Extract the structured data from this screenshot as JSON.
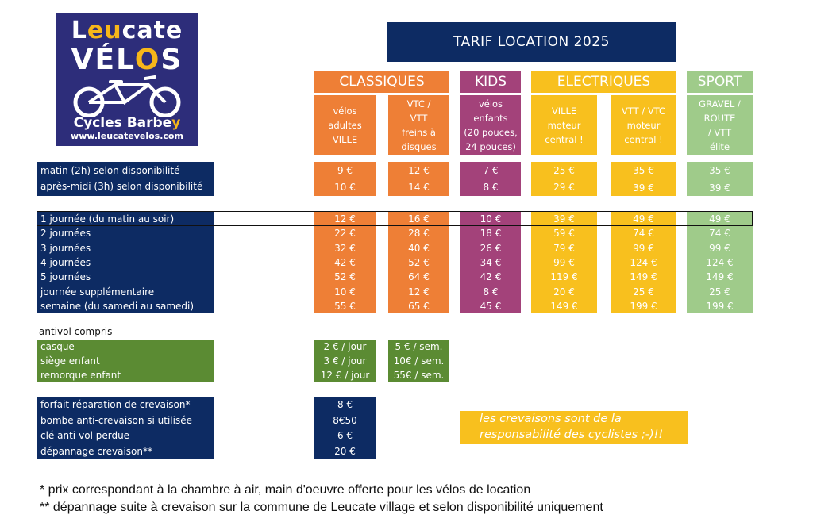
{
  "logo": {
    "line1_a": "L",
    "line1_b": "eu",
    "line1_c": "cate",
    "line2_a": "VÉL",
    "line2_b": "O",
    "line2_c": "S",
    "line3_a": "Cycles Barbe",
    "line3_b": "y",
    "url": "www.leucatevelos.com"
  },
  "title": "TARIF LOCATION 2025",
  "categories": {
    "classiques": "CLASSIQUES",
    "kids": "KIDS",
    "electriques": "ELECTRIQUES",
    "sport": "SPORT"
  },
  "columns": [
    {
      "lines": [
        "vélos",
        "adultes",
        "",
        "VILLE"
      ]
    },
    {
      "lines": [
        "VTC  /",
        "VTT",
        "freins à",
        "disques"
      ]
    },
    {
      "lines": [
        "vélos",
        "enfants",
        "(20 pouces,",
        "24 pouces)"
      ]
    },
    {
      "lines": [
        "VILLE",
        "",
        "moteur",
        "central !"
      ]
    },
    {
      "lines": [
        "VTT / VTC",
        "",
        "moteur",
        "central !"
      ]
    },
    {
      "lines": [
        "GRAVEL /",
        "ROUTE",
        "/ VTT",
        "élite"
      ]
    }
  ],
  "half_day": {
    "labels": [
      "matin (2h) selon disponibilité",
      "après-midi (3h) selon disponibilité"
    ],
    "prices": [
      [
        "9 €",
        "10 €"
      ],
      [
        "12 €",
        "14 €"
      ],
      [
        "7 €",
        "8 €"
      ],
      [
        "25 €",
        "29 €"
      ],
      [
        "35 €",
        "39 €"
      ],
      [
        "35 €",
        "39 €"
      ]
    ]
  },
  "days": {
    "labels": [
      "1 journée (du matin au soir)",
      "2 journées",
      "3 journées",
      "4 journées",
      "5 journées",
      "journée supplémentaire",
      "semaine (du samedi au samedi)"
    ],
    "prices": [
      [
        "12 €",
        "22 €",
        "32 €",
        "42 €",
        "52 €",
        "10 €",
        "55 €"
      ],
      [
        "16 €",
        "28 €",
        "40 €",
        "52 €",
        "64 €",
        "12 €",
        "65 €"
      ],
      [
        "10 €",
        "18 €",
        "26 €",
        "34 €",
        "42 €",
        "8 €",
        "45 €"
      ],
      [
        "39 €",
        "59 €",
        "79 €",
        "99 €",
        "119 €",
        "20 €",
        "149 €"
      ],
      [
        "49 €",
        "74 €",
        "99 €",
        "124 €",
        "149 €",
        "25 €",
        "199 €"
      ],
      [
        "49 €",
        "74 €",
        "99 €",
        "124 €",
        "149 €",
        "25 €",
        "199 €"
      ]
    ]
  },
  "accessories": {
    "heading": "antivol compris",
    "labels": [
      "casque",
      "siège enfant",
      "remorque enfant"
    ],
    "per_day": [
      "2 € / jour",
      "3 € / jour",
      "12 € / jour"
    ],
    "per_week": [
      "5 € / sem.",
      "10€ / sem.",
      "55€ / sem."
    ]
  },
  "repairs": {
    "labels": [
      "forfait réparation de crevaison*",
      "bombe anti-crevaison si utilisée",
      "clé anti-vol perdue",
      "dépannage crevaison**"
    ],
    "prices": [
      "8 €",
      "8€50",
      "6 €",
      "20 €"
    ]
  },
  "note": {
    "line1": "les crevaisons sont de la",
    "line2": "responsabilité des cyclistes ;-)!!"
  },
  "footnotes": [
    "* prix correspondant à la chambre à air, main d'oeuvre offerte pour les vélos de location",
    "** dépannage suite à crevaison sur la commune de Leucate village et selon disponibilité uniquement"
  ],
  "colors": {
    "navy": "#0d2b63",
    "orange": "#ee7f36",
    "purple": "#a3427a",
    "yellow": "#f8c01e",
    "light_green": "#9fcb8a",
    "dark_green": "#5b8b33"
  }
}
